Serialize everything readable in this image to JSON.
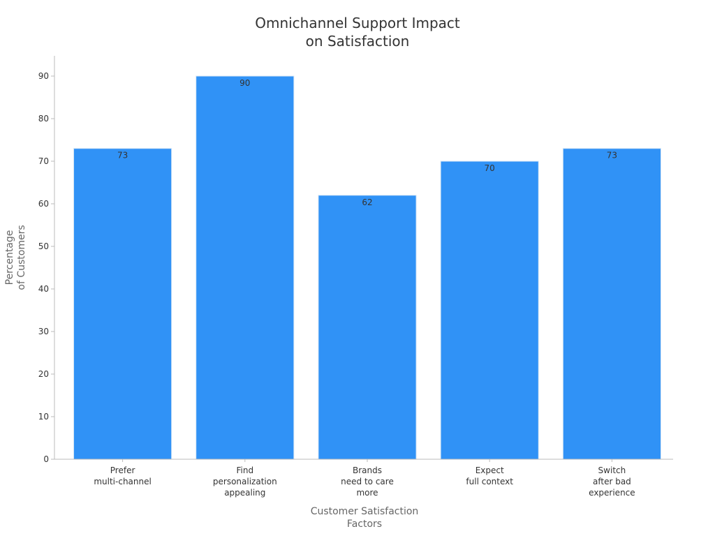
{
  "chart_data": {
    "type": "bar",
    "title": [
      "Omnichannel Support Impact",
      "on Satisfaction"
    ],
    "xlabel": [
      "Customer Satisfaction",
      "Factors"
    ],
    "ylabel": [
      "Percentage",
      "of Customers"
    ],
    "categories": [
      [
        "Prefer",
        "multi-channel"
      ],
      [
        "Find",
        "personalization",
        "appealing"
      ],
      [
        "Brands",
        "need to care",
        "more"
      ],
      [
        "Expect",
        "full context"
      ],
      [
        "Switch",
        "after bad",
        "experience"
      ]
    ],
    "values": [
      73,
      90,
      62,
      70,
      73
    ],
    "data_labels": [
      "73",
      "90",
      "62",
      "70",
      "73"
    ],
    "ylim": [
      0,
      90
    ],
    "yticks": [
      0,
      10,
      20,
      30,
      40,
      50,
      60,
      70,
      80,
      90
    ],
    "grid": false,
    "legend": "none",
    "bar_color": "#3092F6",
    "bar_edge_color": "#D6E6F5",
    "axis_color": "#BBBBBB"
  }
}
